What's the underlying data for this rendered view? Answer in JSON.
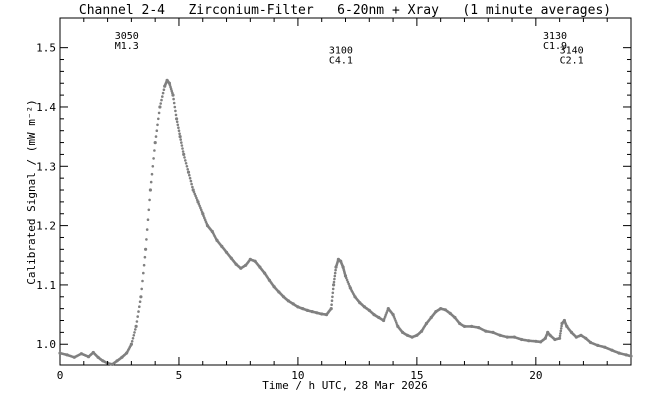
{
  "chart_data": {
    "type": "scatter",
    "title": "Channel 2-4   Zirconium-Filter   6-20nm + Xray   (1 minute averages)",
    "xlabel": "Time / h UTC, 28 Mar 2026",
    "ylabel": "Calibrated Signal / (mW m⁻²)",
    "xlim": [
      0,
      24
    ],
    "ylim": [
      0.965,
      1.55
    ],
    "x_ticks": [
      0,
      5,
      10,
      15,
      20
    ],
    "x_tick_labels": [
      "0",
      "5",
      "10",
      "15",
      "20"
    ],
    "y_ticks": [
      1.0,
      1.1,
      1.2,
      1.3,
      1.4,
      1.5
    ],
    "y_tick_labels": [
      "1.0",
      "1.1",
      "1.2",
      "1.3",
      "1.4",
      "1.5"
    ],
    "grid": false,
    "marker_color": "#808080",
    "series": [
      {
        "points": [
          [
            0.0,
            0.985
          ],
          [
            0.3,
            0.982
          ],
          [
            0.6,
            0.978
          ],
          [
            0.9,
            0.984
          ],
          [
            1.2,
            0.979
          ],
          [
            1.4,
            0.986
          ],
          [
            1.6,
            0.978
          ],
          [
            1.8,
            0.972
          ],
          [
            2.0,
            0.968
          ],
          [
            2.2,
            0.966
          ],
          [
            2.4,
            0.972
          ],
          [
            2.6,
            0.978
          ],
          [
            2.8,
            0.985
          ],
          [
            3.0,
            1.0
          ],
          [
            3.2,
            1.03
          ],
          [
            3.4,
            1.08
          ],
          [
            3.6,
            1.16
          ],
          [
            3.8,
            1.26
          ],
          [
            4.0,
            1.34
          ],
          [
            4.2,
            1.4
          ],
          [
            4.4,
            1.435
          ],
          [
            4.5,
            1.445
          ],
          [
            4.6,
            1.44
          ],
          [
            4.75,
            1.42
          ],
          [
            4.9,
            1.38
          ],
          [
            5.05,
            1.35
          ],
          [
            5.2,
            1.32
          ],
          [
            5.4,
            1.29
          ],
          [
            5.6,
            1.26
          ],
          [
            5.8,
            1.24
          ],
          [
            6.0,
            1.22
          ],
          [
            6.2,
            1.2
          ],
          [
            6.4,
            1.19
          ],
          [
            6.6,
            1.175
          ],
          [
            6.8,
            1.165
          ],
          [
            7.0,
            1.155
          ],
          [
            7.2,
            1.145
          ],
          [
            7.4,
            1.135
          ],
          [
            7.6,
            1.128
          ],
          [
            7.8,
            1.133
          ],
          [
            8.0,
            1.143
          ],
          [
            8.2,
            1.14
          ],
          [
            8.4,
            1.13
          ],
          [
            8.6,
            1.12
          ],
          [
            8.8,
            1.108
          ],
          [
            9.0,
            1.097
          ],
          [
            9.2,
            1.088
          ],
          [
            9.4,
            1.08
          ],
          [
            9.6,
            1.073
          ],
          [
            9.8,
            1.068
          ],
          [
            10.0,
            1.063
          ],
          [
            10.2,
            1.06
          ],
          [
            10.4,
            1.057
          ],
          [
            10.6,
            1.055
          ],
          [
            10.8,
            1.053
          ],
          [
            11.0,
            1.051
          ],
          [
            11.2,
            1.05
          ],
          [
            11.4,
            1.06
          ],
          [
            11.5,
            1.1
          ],
          [
            11.6,
            1.13
          ],
          [
            11.7,
            1.143
          ],
          [
            11.8,
            1.14
          ],
          [
            11.9,
            1.13
          ],
          [
            12.0,
            1.115
          ],
          [
            12.2,
            1.095
          ],
          [
            12.4,
            1.08
          ],
          [
            12.6,
            1.07
          ],
          [
            12.8,
            1.063
          ],
          [
            13.0,
            1.057
          ],
          [
            13.2,
            1.05
          ],
          [
            13.4,
            1.045
          ],
          [
            13.6,
            1.04
          ],
          [
            13.8,
            1.06
          ],
          [
            14.0,
            1.05
          ],
          [
            14.2,
            1.03
          ],
          [
            14.4,
            1.02
          ],
          [
            14.6,
            1.015
          ],
          [
            14.8,
            1.012
          ],
          [
            15.0,
            1.015
          ],
          [
            15.2,
            1.022
          ],
          [
            15.4,
            1.035
          ],
          [
            15.6,
            1.045
          ],
          [
            15.8,
            1.055
          ],
          [
            16.0,
            1.06
          ],
          [
            16.2,
            1.058
          ],
          [
            16.4,
            1.052
          ],
          [
            16.6,
            1.045
          ],
          [
            16.8,
            1.035
          ],
          [
            17.0,
            1.03
          ],
          [
            17.3,
            1.03
          ],
          [
            17.6,
            1.028
          ],
          [
            17.9,
            1.022
          ],
          [
            18.2,
            1.02
          ],
          [
            18.5,
            1.015
          ],
          [
            18.8,
            1.012
          ],
          [
            19.1,
            1.012
          ],
          [
            19.4,
            1.008
          ],
          [
            19.7,
            1.006
          ],
          [
            20.0,
            1.005
          ],
          [
            20.2,
            1.004
          ],
          [
            20.4,
            1.01
          ],
          [
            20.5,
            1.02
          ],
          [
            20.6,
            1.015
          ],
          [
            20.8,
            1.008
          ],
          [
            21.0,
            1.01
          ],
          [
            21.1,
            1.035
          ],
          [
            21.2,
            1.04
          ],
          [
            21.3,
            1.03
          ],
          [
            21.5,
            1.02
          ],
          [
            21.7,
            1.012
          ],
          [
            21.9,
            1.015
          ],
          [
            22.1,
            1.01
          ],
          [
            22.3,
            1.003
          ],
          [
            22.6,
            0.998
          ],
          [
            22.9,
            0.995
          ],
          [
            23.2,
            0.99
          ],
          [
            23.5,
            0.985
          ],
          [
            23.8,
            0.982
          ],
          [
            24.0,
            0.98
          ]
        ]
      }
    ],
    "annotations": [
      {
        "x": 2.3,
        "y": 1.515,
        "line1": "3050",
        "line2": "M1.3"
      },
      {
        "x": 11.3,
        "y": 1.49,
        "line1": "3100",
        "line2": "C4.1"
      },
      {
        "x": 20.3,
        "y": 1.515,
        "line1": "3130",
        "line2": "C1.9"
      },
      {
        "x": 21.0,
        "y": 1.49,
        "line1": "3140",
        "line2": "C2.1"
      }
    ]
  }
}
